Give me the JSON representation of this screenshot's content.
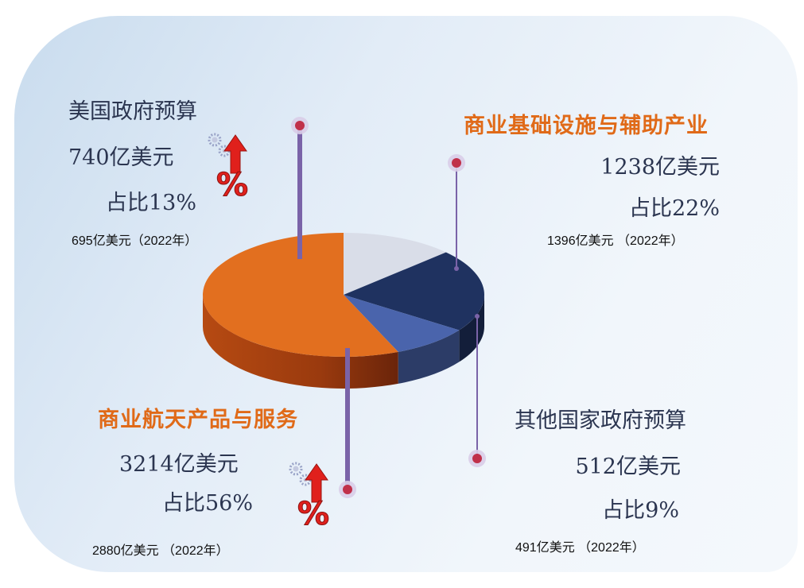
{
  "colors": {
    "us_gov": "#d9dde8",
    "infrastructure": "#1f3260",
    "other_gov": "#4a64ac",
    "commercial": "#e26f1f",
    "leader": "#7a63a8",
    "dot": "#c0304a",
    "up_arrow": "#e0201c"
  },
  "icons": [
    "gear-icon",
    "up-arrow-icon",
    "percent-icon"
  ],
  "segments": {
    "us_gov": {
      "title": "美国政府预算",
      "value": "740亿美元",
      "share": "占比13%",
      "prev": "695亿美元（2022年）"
    },
    "infrastructure": {
      "title": "商业基础设施与辅助产业",
      "value": "1238亿美元",
      "share": "占比22%",
      "prev": "1396亿美元 （2022年）"
    },
    "other_gov": {
      "title": "其他国家政府预算",
      "value": "512亿美元",
      "share": "占比9%",
      "prev": "491亿美元 （2022年）"
    },
    "commercial": {
      "title": "商业航天产品与服务",
      "value": "3214亿美元",
      "share": "占比56%",
      "prev": "2880亿美元 （2022年）"
    }
  },
  "icon_symbols": {
    "percent": "%"
  },
  "chart_data": {
    "type": "pie",
    "style": "3d",
    "unit": "亿美元",
    "categories": [
      "美国政府预算",
      "商业基础设施与辅助产业",
      "其他国家政府预算",
      "商业航天产品与服务"
    ],
    "values": [
      740,
      1238,
      512,
      3214
    ],
    "shares_percent": [
      13,
      22,
      9,
      56
    ],
    "values_2022": [
      695,
      1396,
      491,
      2880
    ],
    "legend": "none"
  }
}
